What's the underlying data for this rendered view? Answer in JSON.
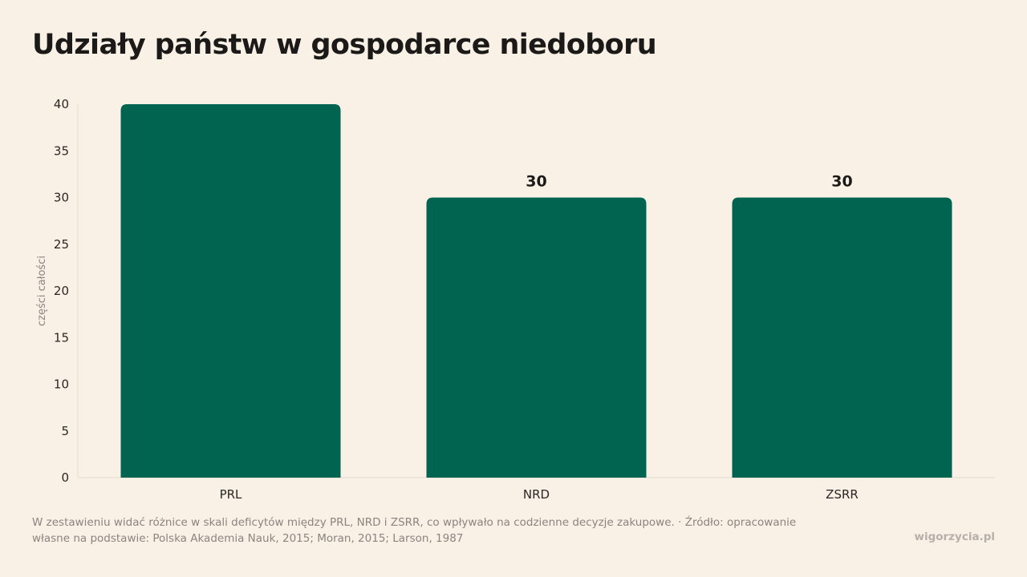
{
  "page": {
    "title": "Udziały państw w gospodarce niedoboru",
    "note": "W zestawieniu widać różnice w skali deficytów między PRL, NRD i ZSRR, co wpływało na codzienne decyzje zakupowe. · Źródło: opracowanie własne na podstawie: Polska Akademia Nauk, 2015; Moran, 2015; Larson, 1987",
    "brand": "wigorzycia.pl"
  },
  "chart_data": {
    "type": "bar",
    "title": "Udziały państw w gospodarce niedoboru",
    "xlabel": "",
    "ylabel": "części całości",
    "categories": [
      "PRL",
      "NRD",
      "ZSRR"
    ],
    "values": [
      40,
      30,
      30
    ],
    "value_labels": [
      "",
      "30",
      "30"
    ],
    "ylim": [
      0,
      40
    ],
    "yticks": [
      0,
      5,
      10,
      15,
      20,
      25,
      30,
      35,
      40
    ],
    "grid": false,
    "legend": "none",
    "colors": {
      "bar": "#006450",
      "axis": "#e2dad2"
    }
  }
}
